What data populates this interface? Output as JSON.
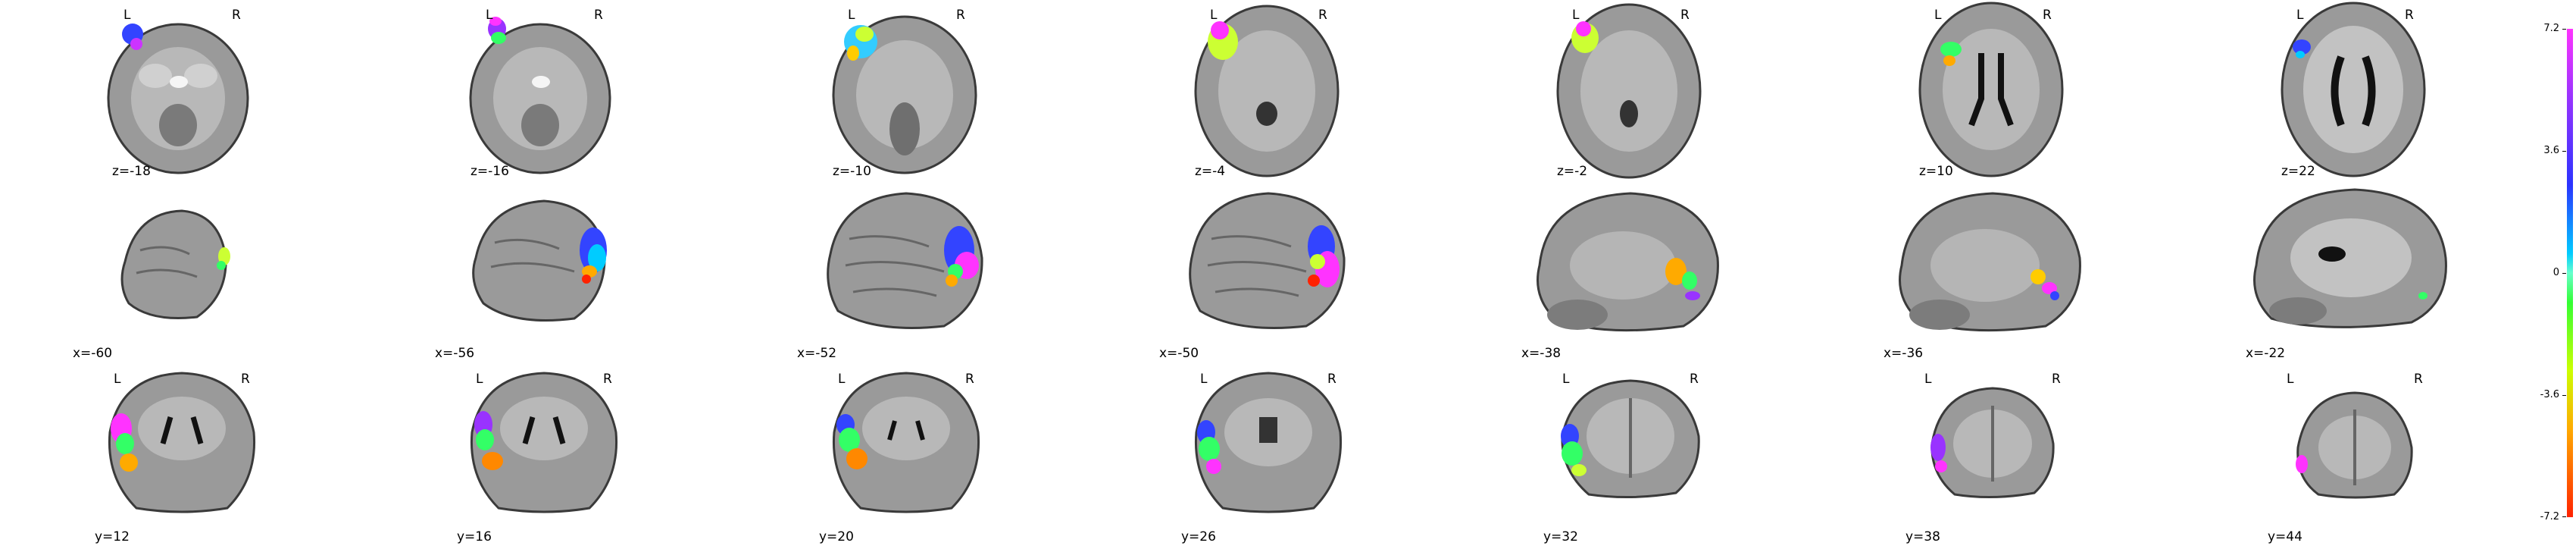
{
  "orientation": {
    "left": "L",
    "right": "R"
  },
  "rows": [
    {
      "view": "axial",
      "slices": [
        "z=-18",
        "z=-16",
        "z=-10",
        "z=-4",
        "z=-2",
        "z=10",
        "z=22"
      ]
    },
    {
      "view": "sagittal",
      "slices": [
        "x=-60",
        "x=-56",
        "x=-52",
        "x=-50",
        "x=-38",
        "x=-36",
        "x=-22"
      ]
    },
    {
      "view": "coronal",
      "slices": [
        "y=12",
        "y=16",
        "y=20",
        "y=26",
        "y=32",
        "y=38",
        "y=44"
      ]
    }
  ],
  "colorbar": {
    "ticks": [
      "7.2",
      "3.6",
      "0",
      "-3.6",
      "-7.2"
    ],
    "colormap": [
      "#ff33ff",
      "#9933ff",
      "#2b33ff",
      "#00ccff",
      "#66ffcc",
      "#33ff33",
      "#ccff00",
      "#ffaa00",
      "#ff2200"
    ]
  }
}
